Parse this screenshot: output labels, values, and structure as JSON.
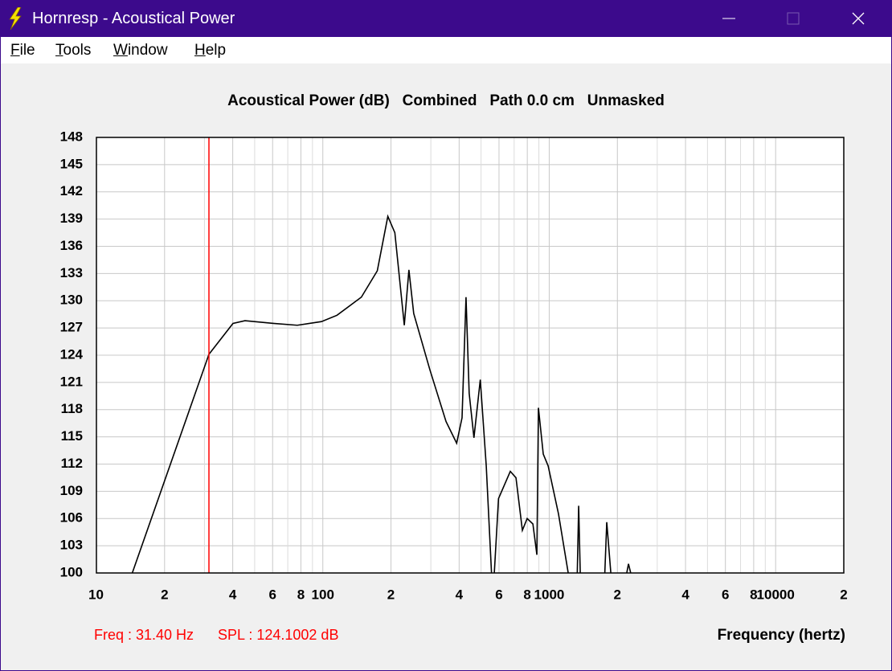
{
  "window": {
    "title": "Hornresp - Acoustical Power",
    "menu": [
      "File",
      "Tools",
      "Window",
      "Help"
    ]
  },
  "chart_data": {
    "type": "line",
    "title": "Acoustical Power (dB)   Combined   Path 0.0 cm   Unmasked",
    "xlabel": "Frequency (hertz)",
    "xscale": "log",
    "grid": true,
    "xlim": [
      10,
      20000
    ],
    "ylim": [
      100,
      148
    ],
    "xticks": [
      10,
      {
        "value": 20,
        "label": "2"
      },
      {
        "value": 40,
        "label": "4"
      },
      {
        "value": 60,
        "label": "6"
      },
      {
        "value": 80,
        "label": "8"
      },
      100,
      {
        "value": 200,
        "label": "2"
      },
      {
        "value": 400,
        "label": "4"
      },
      {
        "value": 600,
        "label": "6"
      },
      {
        "value": 800,
        "label": "8"
      },
      1000,
      {
        "value": 2000,
        "label": "2"
      },
      {
        "value": 4000,
        "label": "4"
      },
      {
        "value": 6000,
        "label": "6"
      },
      {
        "value": 8000,
        "label": "8"
      },
      10000,
      {
        "value": 20000,
        "label": "2"
      }
    ],
    "x_minor_ticks": [
      30,
      50,
      70,
      90,
      300,
      500,
      700,
      900,
      3000,
      5000,
      7000,
      9000
    ],
    "yticks": [
      100,
      103,
      106,
      109,
      112,
      115,
      118,
      121,
      124,
      127,
      130,
      133,
      136,
      139,
      142,
      145,
      148
    ],
    "series": [
      {
        "color": "#000000",
        "x": [
          14.4,
          31.4,
          40.1,
          45.3,
          60.5,
          77.1,
          98.6,
          115.5,
          148,
          174,
          193.7,
          208,
          229,
          240,
          252,
          297,
          350,
          390,
          412,
          429,
          443,
          465,
          496,
          527,
          556,
          null,
          572,
          597,
          673,
          713,
          761,
          799,
          847,
          882,
          896,
          941,
          989,
          1099,
          1213,
          null,
          1330,
          1349,
          1371,
          null,
          1760,
          1795,
          1871,
          null,
          2200,
          2239,
          2290
        ],
        "values": [
          100,
          124.1,
          127.5,
          127.8,
          127.5,
          127.3,
          127.7,
          128.4,
          130.4,
          133.3,
          139.3,
          137.5,
          127.3,
          133.4,
          128.6,
          122.4,
          116.7,
          114.3,
          117.1,
          130.4,
          119.8,
          114.9,
          121.3,
          111.8,
          100,
          null,
          100,
          108.2,
          111.2,
          110.5,
          104.7,
          106.0,
          105.4,
          102.0,
          118.2,
          113.1,
          111.8,
          106.5,
          100,
          null,
          100,
          107.4,
          100,
          null,
          100,
          105.6,
          100,
          null,
          100,
          101,
          100
        ]
      }
    ],
    "cursor": {
      "x": 31.4,
      "color": "#ff0000"
    },
    "annotations": [
      "Freq : 31.40 Hz",
      "SPL : 124.1002 dB"
    ]
  }
}
